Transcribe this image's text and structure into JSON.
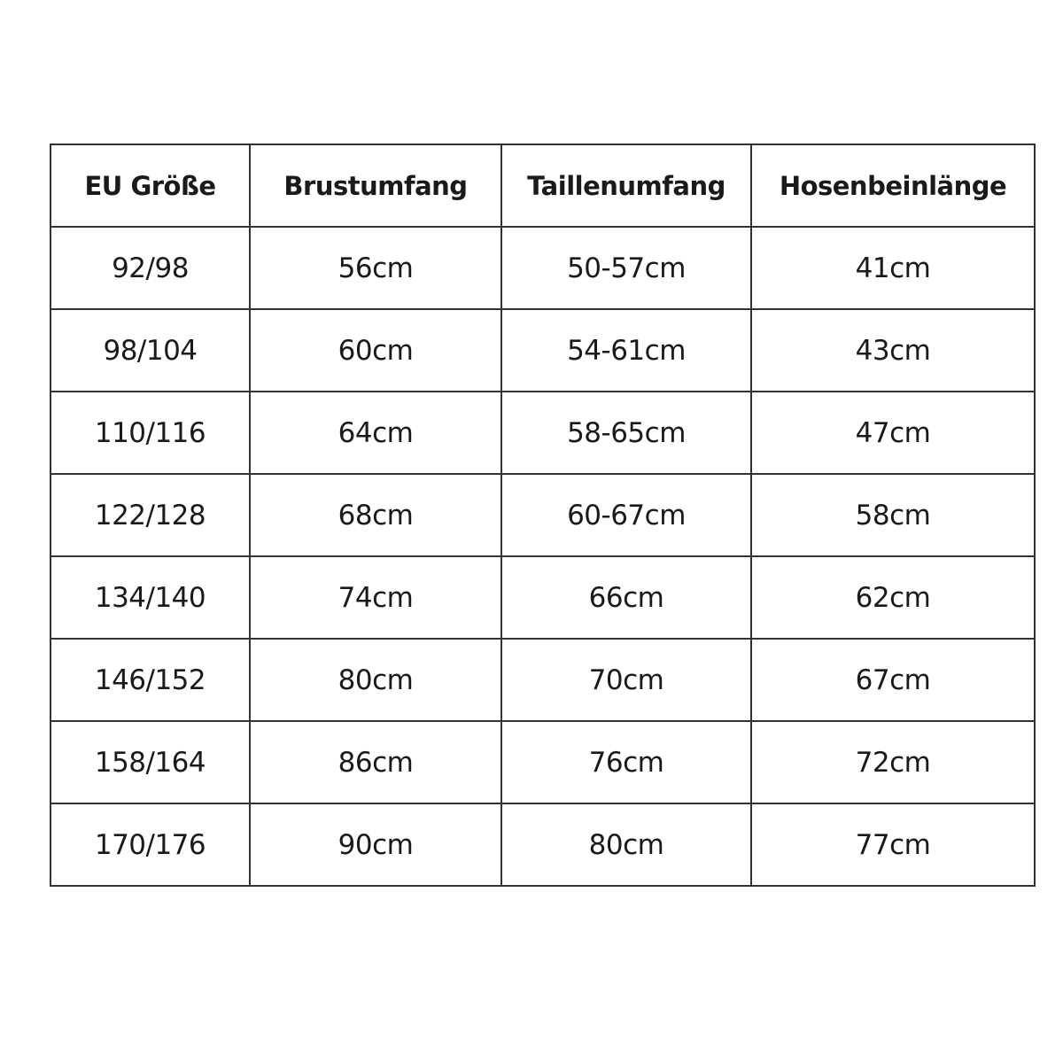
{
  "table": {
    "headers": [
      "EU Größe",
      "Brustumfang",
      "Taillenumfang",
      "Hosenbeinlänge"
    ],
    "rows": [
      [
        "92/98",
        "56cm",
        "50-57cm",
        "41cm"
      ],
      [
        "98/104",
        "60cm",
        "54-61cm",
        "43cm"
      ],
      [
        "110/116",
        "64cm",
        "58-65cm",
        "47cm"
      ],
      [
        "122/128",
        "68cm",
        "60-67cm",
        "58cm"
      ],
      [
        "134/140",
        "74cm",
        "66cm",
        "62cm"
      ],
      [
        "146/152",
        "80cm",
        "70cm",
        "67cm"
      ],
      [
        "158/164",
        "86cm",
        "76cm",
        "72cm"
      ],
      [
        "170/176",
        "90cm",
        "80cm",
        "77cm"
      ]
    ]
  }
}
